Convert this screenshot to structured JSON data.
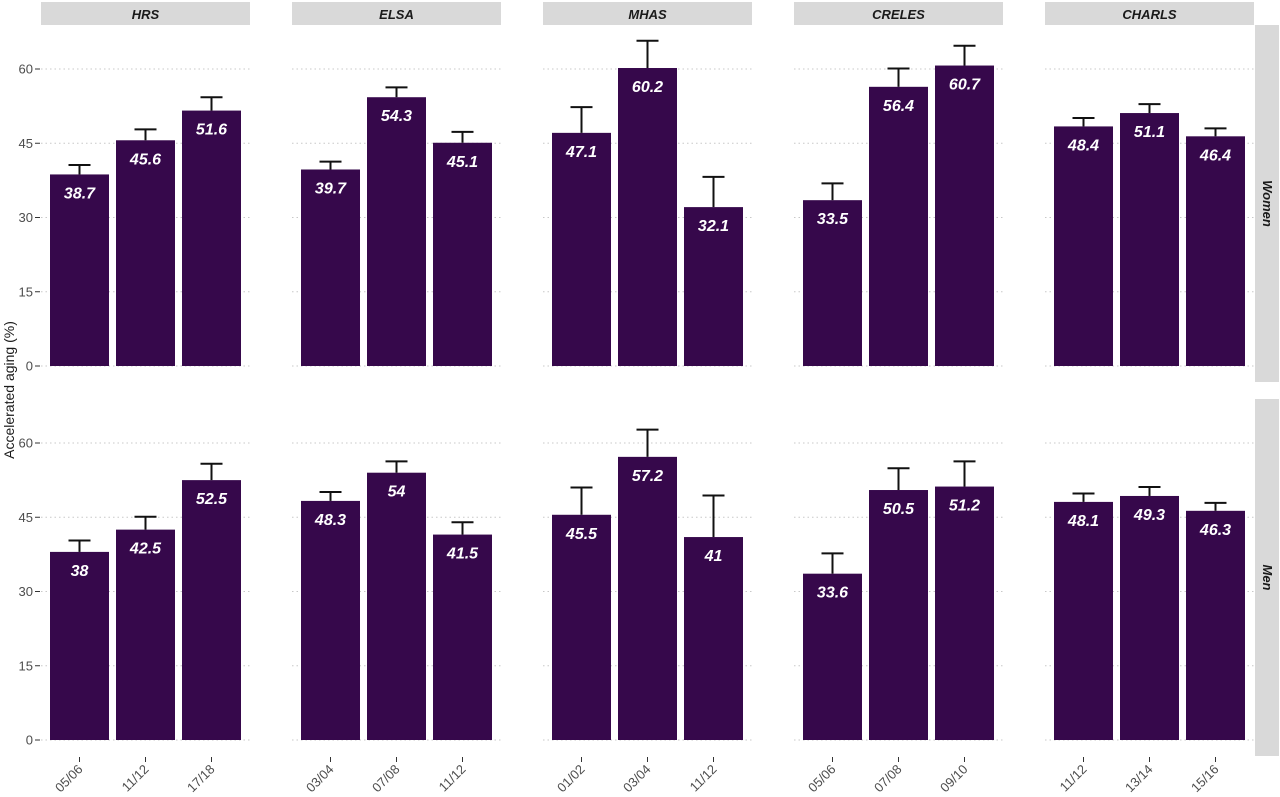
{
  "chart_data": {
    "type": "bar",
    "ylabel": "Accelerated aging (%)",
    "ylim": [
      0,
      66
    ],
    "yticks": [
      0,
      15,
      30,
      45,
      60
    ],
    "grid": "horizontal dotted",
    "bar_color": "#36084b",
    "error_color": "#111111",
    "strip_color": "#d9d9d9",
    "panels": [
      "HRS",
      "ELSA",
      "MHAS",
      "CRELES",
      "CHARLS"
    ],
    "rows": [
      "Women",
      "Men"
    ],
    "categories": {
      "HRS": [
        "05/06",
        "11/12",
        "17/18"
      ],
      "ELSA": [
        "03/04",
        "07/08",
        "11/12"
      ],
      "MHAS": [
        "01/02",
        "03/04",
        "11/12"
      ],
      "CRELES": [
        "05/06",
        "07/08",
        "09/10"
      ],
      "CHARLS": [
        "11/12",
        "13/14",
        "15/16"
      ]
    },
    "series": [
      {
        "row": "Women",
        "values": {
          "HRS": [
            38.7,
            45.6,
            51.6
          ],
          "ELSA": [
            39.7,
            54.3,
            45.1
          ],
          "MHAS": [
            47.1,
            60.2,
            32.1
          ],
          "CRELES": [
            33.5,
            56.4,
            60.7
          ],
          "CHARLS": [
            48.4,
            51.1,
            46.4
          ]
        },
        "error_upper": {
          "HRS": [
            40.6,
            47.8,
            54.3
          ],
          "ELSA": [
            41.3,
            56.3,
            47.3
          ],
          "MHAS": [
            52.3,
            65.7,
            38.2
          ],
          "CRELES": [
            36.9,
            60.1,
            64.7
          ],
          "CHARLS": [
            50.1,
            52.9,
            48.0
          ]
        }
      },
      {
        "row": "Men",
        "values": {
          "HRS": [
            38,
            42.5,
            52.5
          ],
          "ELSA": [
            48.3,
            54,
            41.5
          ],
          "MHAS": [
            45.5,
            57.2,
            41
          ],
          "CRELES": [
            33.6,
            50.5,
            51.2
          ],
          "CHARLS": [
            48.1,
            49.3,
            46.3
          ]
        },
        "error_upper": {
          "HRS": [
            40.3,
            45.1,
            55.8
          ],
          "ELSA": [
            50.1,
            56.3,
            44.0
          ],
          "MHAS": [
            51.0,
            62.7,
            49.4
          ],
          "CRELES": [
            37.7,
            54.9,
            56.3
          ],
          "CHARLS": [
            49.8,
            51.1,
            47.9
          ]
        }
      }
    ]
  }
}
